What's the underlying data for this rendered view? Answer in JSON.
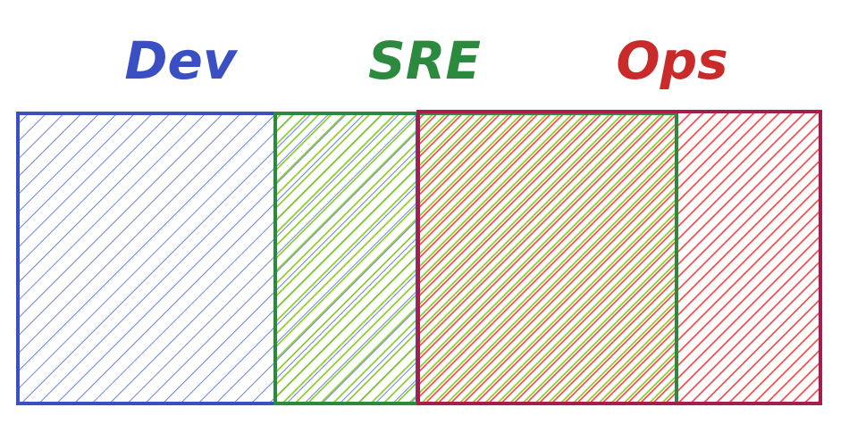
{
  "diagram": {
    "groups": [
      {
        "id": "dev",
        "label": "Dev",
        "stroke": "#3b4fc4",
        "hachure": "#4a63d8",
        "text_color": "#3b4fc4"
      },
      {
        "id": "sre",
        "label": "SRE",
        "stroke": "#2b8a3e",
        "hachure": "#82c91e",
        "text_color": "#2b8a3e"
      },
      {
        "id": "ops",
        "label": "Ops",
        "stroke": "#a61e4d",
        "hachure": "#f03e3e",
        "text_color": "#c92a2a"
      }
    ],
    "style": "hand-drawn hachure overlapping rectangles"
  }
}
